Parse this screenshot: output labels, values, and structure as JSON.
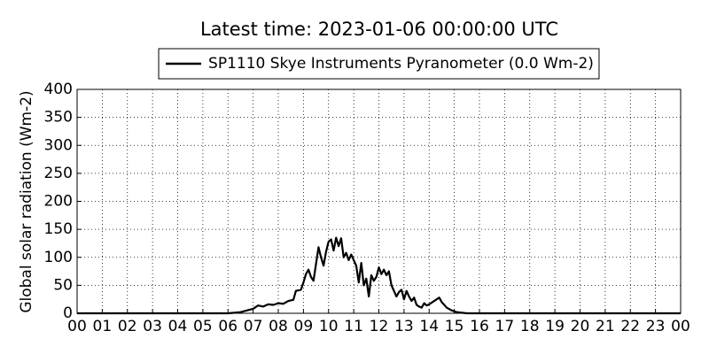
{
  "chart_data": {
    "type": "line",
    "title": "Latest time: 2023-01-06 00:00:00 UTC",
    "ylabel": "Global solar radiation (Wm-2)",
    "x": [
      0,
      6.0,
      6.5,
      7.0,
      7.2,
      7.4,
      7.6,
      7.8,
      8.0,
      8.2,
      8.4,
      8.6,
      8.7,
      8.9,
      9.0,
      9.1,
      9.2,
      9.3,
      9.4,
      9.5,
      9.6,
      9.7,
      9.8,
      9.9,
      10.0,
      10.1,
      10.2,
      10.3,
      10.4,
      10.5,
      10.6,
      10.7,
      10.8,
      10.9,
      11.0,
      11.1,
      11.2,
      11.3,
      11.4,
      11.5,
      11.6,
      11.7,
      11.8,
      11.9,
      12.0,
      12.1,
      12.2,
      12.3,
      12.4,
      12.5,
      12.6,
      12.7,
      12.8,
      12.9,
      13.0,
      13.1,
      13.2,
      13.3,
      13.4,
      13.5,
      13.6,
      13.7,
      13.8,
      13.9,
      14.0,
      14.2,
      14.4,
      14.5,
      14.7,
      14.9,
      15.1,
      15.5,
      24
    ],
    "series": [
      {
        "name": "SP1110 Skye Instruments Pyranometer (0.0 Wm-2)",
        "color": "#000000",
        "values": [
          0,
          0,
          2,
          8,
          14,
          12,
          16,
          15,
          18,
          17,
          22,
          24,
          40,
          42,
          55,
          70,
          78,
          65,
          58,
          88,
          118,
          100,
          85,
          110,
          128,
          132,
          112,
          135,
          120,
          134,
          100,
          108,
          95,
          105,
          95,
          85,
          55,
          90,
          50,
          62,
          30,
          68,
          58,
          65,
          82,
          70,
          78,
          68,
          75,
          50,
          40,
          30,
          38,
          42,
          25,
          40,
          30,
          22,
          28,
          15,
          12,
          10,
          18,
          14,
          16,
          22,
          28,
          20,
          10,
          5,
          2,
          0,
          0
        ]
      }
    ],
    "xlim": [
      0,
      24
    ],
    "xticks": [
      {
        "value": 0,
        "label": "00"
      },
      {
        "value": 1,
        "label": "01"
      },
      {
        "value": 2,
        "label": "02"
      },
      {
        "value": 3,
        "label": "03"
      },
      {
        "value": 4,
        "label": "04"
      },
      {
        "value": 5,
        "label": "05"
      },
      {
        "value": 6,
        "label": "06"
      },
      {
        "value": 7,
        "label": "07"
      },
      {
        "value": 8,
        "label": "08"
      },
      {
        "value": 9,
        "label": "09"
      },
      10,
      11,
      12,
      13,
      14,
      15,
      16,
      17,
      18,
      19,
      20,
      21,
      22,
      23,
      {
        "value": 24,
        "label": "00"
      }
    ],
    "ylim": [
      0,
      400
    ],
    "yticks": [
      0,
      50,
      100,
      150,
      200,
      250,
      300,
      350,
      400
    ],
    "grid": true,
    "legend": "upper center"
  }
}
